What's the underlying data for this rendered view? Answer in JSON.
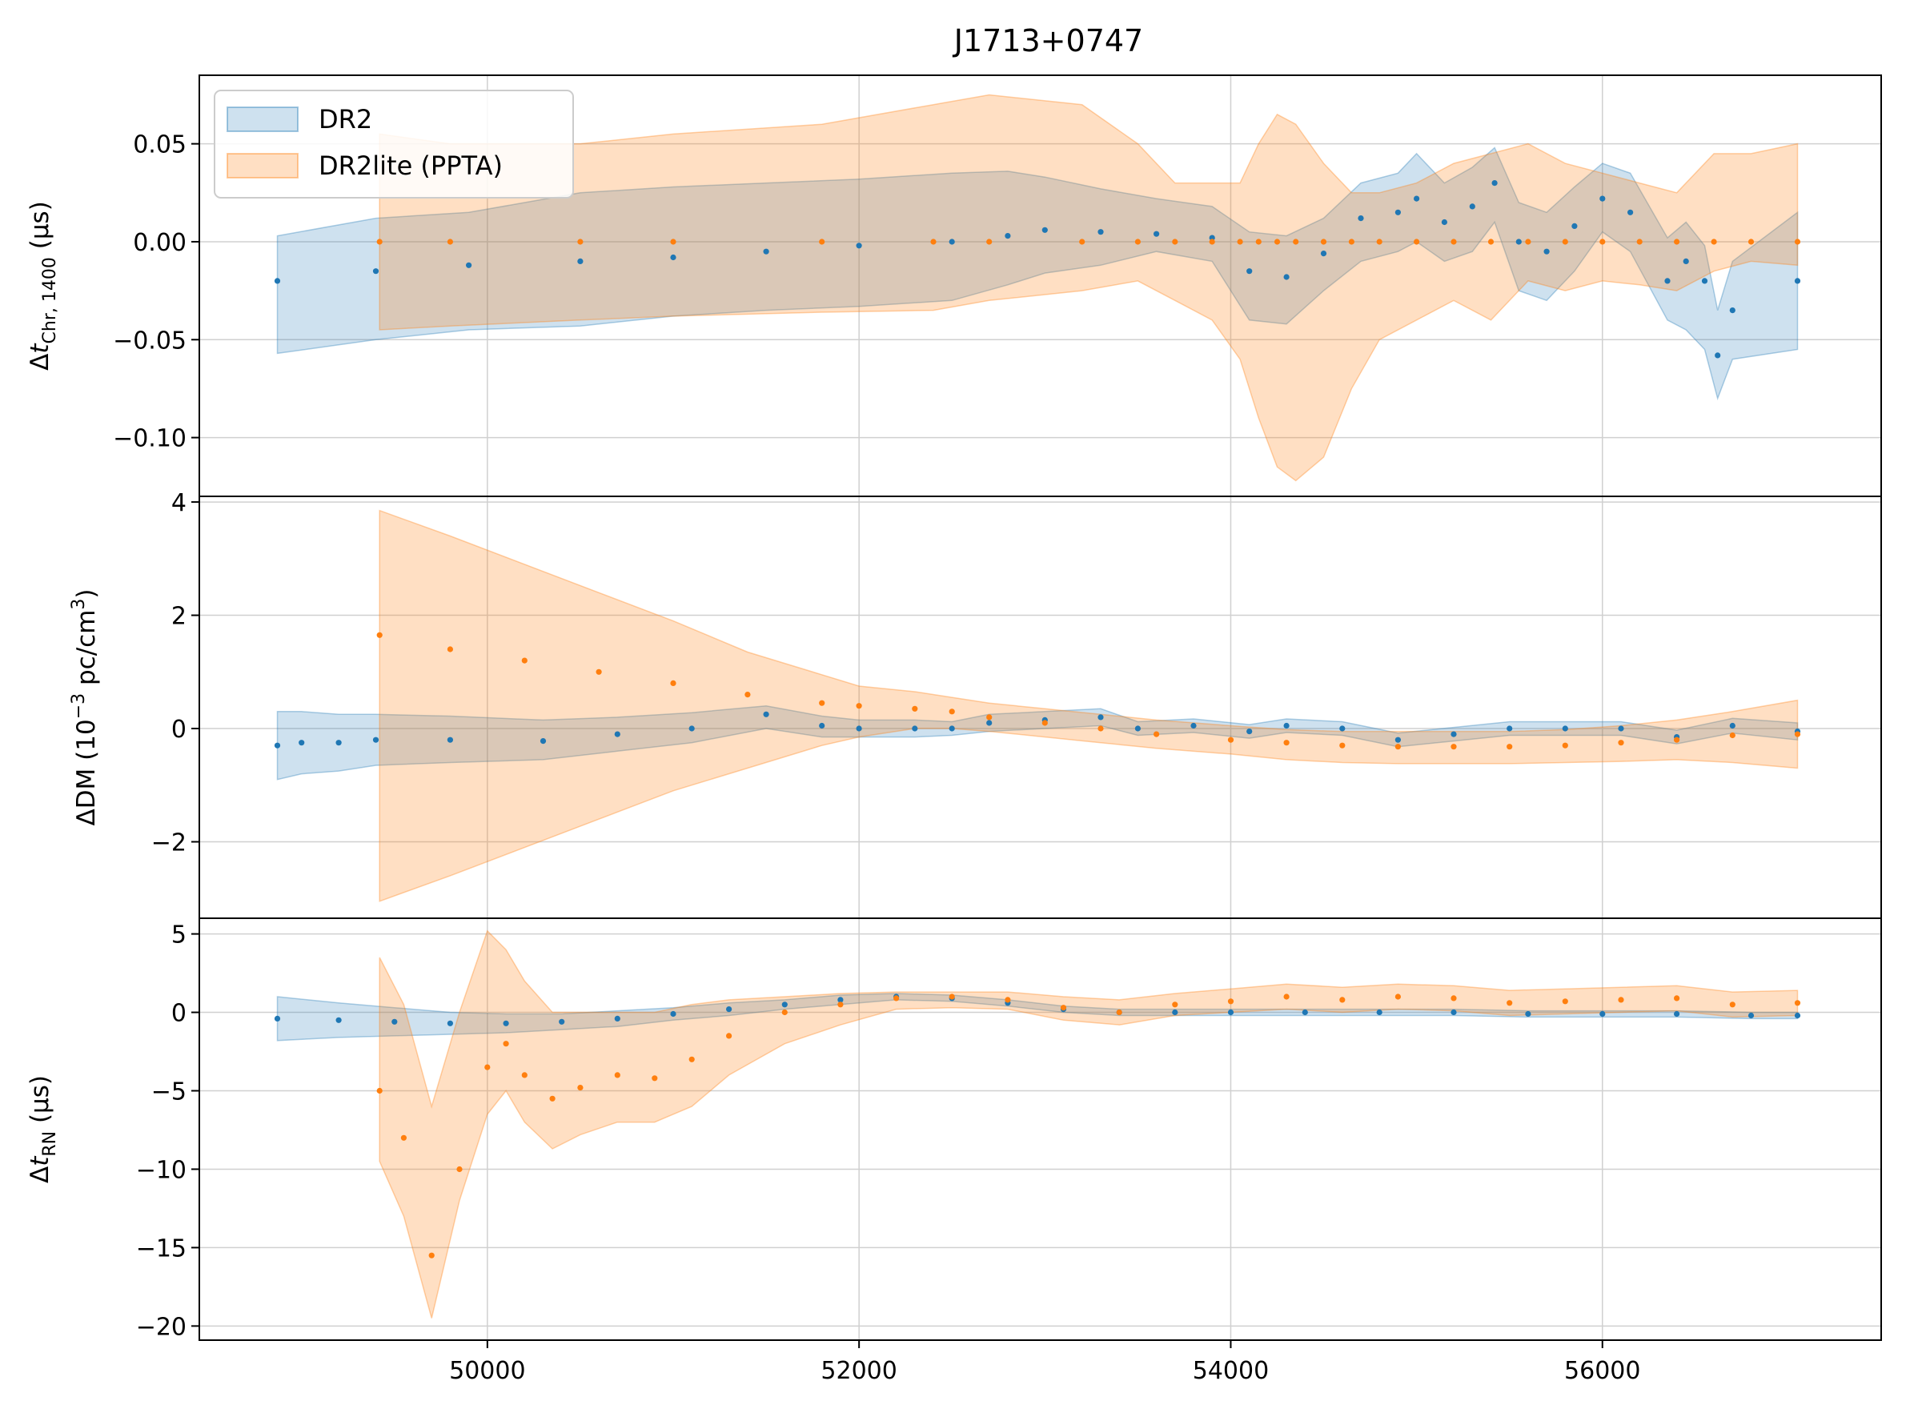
{
  "figure_title": "J1713+0747",
  "legend": {
    "entries": [
      {
        "label": "DR2",
        "color": "#1f77b4"
      },
      {
        "label": "DR2lite (PPTA)",
        "color": "#ff7f0e"
      }
    ]
  },
  "colors": {
    "dr2": "#1f77b4",
    "dr2lite": "#ff7f0e",
    "grid": "#d0d0d0"
  },
  "chart_data": [
    {
      "type": "scatter",
      "panel": "chromatic",
      "title": "J1713+0747",
      "ylabel": "Δt_Chr,1400 (μs)",
      "ylabel_parts": {
        "delta": "Δ",
        "var": "t",
        "sub": "Chr, 1400",
        "unit": "(μs)"
      },
      "xlim": [
        48450,
        57500
      ],
      "ylim": [
        -0.13,
        0.085
      ],
      "yticks": [
        0.05,
        0.0,
        -0.05,
        -0.1
      ],
      "ytick_labels": [
        "0.05",
        "0.00",
        "−0.05",
        "−0.10"
      ],
      "grid": true,
      "legend_position": "upper-left",
      "series": [
        {
          "name": "DR2",
          "x": [
            48870,
            49400,
            49900,
            50500,
            51000,
            51500,
            52000,
            52500,
            52800,
            53000,
            53300,
            53600,
            53900,
            54100,
            54300,
            54500,
            54700,
            54900,
            55000,
            55150,
            55300,
            55420,
            55550,
            55700,
            55850,
            56000,
            56150,
            56350,
            56450,
            56550,
            56620,
            56700,
            57050
          ],
          "y": [
            -0.02,
            -0.015,
            -0.012,
            -0.01,
            -0.008,
            -0.005,
            -0.002,
            0.0,
            0.003,
            0.006,
            0.005,
            0.004,
            0.002,
            -0.015,
            -0.018,
            -0.006,
            0.012,
            0.015,
            0.022,
            0.01,
            0.018,
            0.03,
            0.0,
            -0.005,
            0.008,
            0.022,
            0.015,
            -0.02,
            -0.01,
            -0.02,
            -0.058,
            -0.035,
            -0.02
          ],
          "lower": [
            -0.057,
            -0.05,
            -0.045,
            -0.043,
            -0.038,
            -0.035,
            -0.033,
            -0.03,
            -0.022,
            -0.016,
            -0.012,
            -0.005,
            -0.01,
            -0.04,
            -0.042,
            -0.025,
            -0.01,
            -0.005,
            0.0,
            -0.01,
            -0.005,
            0.01,
            -0.025,
            -0.03,
            -0.015,
            0.005,
            -0.005,
            -0.04,
            -0.045,
            -0.055,
            -0.08,
            -0.06,
            -0.055
          ],
          "upper": [
            0.003,
            0.012,
            0.015,
            0.025,
            0.028,
            0.03,
            0.032,
            0.035,
            0.036,
            0.033,
            0.027,
            0.022,
            0.018,
            0.005,
            0.003,
            0.012,
            0.03,
            0.035,
            0.045,
            0.03,
            0.038,
            0.048,
            0.02,
            0.015,
            0.028,
            0.04,
            0.035,
            0.002,
            0.01,
            -0.002,
            -0.035,
            -0.01,
            0.015
          ]
        },
        {
          "name": "DR2lite (PPTA)",
          "x": [
            49420,
            49800,
            50500,
            51000,
            51800,
            52400,
            52700,
            53200,
            53500,
            53700,
            53900,
            54050,
            54150,
            54250,
            54350,
            54500,
            54650,
            54800,
            55000,
            55200,
            55400,
            55600,
            55800,
            56000,
            56200,
            56400,
            56600,
            56800,
            57050
          ],
          "y": [
            0.0,
            0.0,
            0.0,
            0.0,
            0.0,
            0.0,
            0.0,
            0.0,
            0.0,
            0.0,
            0.0,
            0.0,
            0.0,
            0.0,
            0.0,
            0.0,
            0.0,
            0.0,
            0.0,
            0.0,
            0.0,
            0.0,
            0.0,
            0.0,
            0.0,
            0.0,
            0.0,
            0.0,
            0.0
          ],
          "lower": [
            -0.045,
            -0.043,
            -0.04,
            -0.038,
            -0.036,
            -0.035,
            -0.03,
            -0.025,
            -0.02,
            -0.03,
            -0.04,
            -0.06,
            -0.09,
            -0.115,
            -0.122,
            -0.11,
            -0.075,
            -0.05,
            -0.04,
            -0.03,
            -0.04,
            -0.02,
            -0.025,
            -0.02,
            -0.022,
            -0.025,
            -0.015,
            -0.01,
            -0.012
          ],
          "upper": [
            0.055,
            0.05,
            0.05,
            0.055,
            0.06,
            0.07,
            0.075,
            0.07,
            0.05,
            0.03,
            0.03,
            0.03,
            0.05,
            0.065,
            0.06,
            0.04,
            0.025,
            0.025,
            0.03,
            0.04,
            0.045,
            0.05,
            0.04,
            0.035,
            0.03,
            0.025,
            0.045,
            0.045,
            0.05
          ]
        }
      ]
    },
    {
      "type": "scatter",
      "panel": "dm",
      "ylabel": "ΔDM (10^−3 pc/cm^3)",
      "ylabel_parts": {
        "pre": "ΔDM (10",
        "exp": "−3",
        "mid": " pc/cm",
        "exp2": "3",
        "post": ")"
      },
      "xlim": [
        48450,
        57500
      ],
      "ylim": [
        -3.35,
        4.1
      ],
      "yticks": [
        4,
        2,
        0,
        -2
      ],
      "ytick_labels": [
        "4",
        "2",
        "0",
        "−2"
      ],
      "grid": true,
      "series": [
        {
          "name": "DR2",
          "x": [
            48870,
            49000,
            49200,
            49400,
            49800,
            50300,
            50700,
            51100,
            51500,
            51800,
            52000,
            52300,
            52500,
            52700,
            53000,
            53300,
            53500,
            53800,
            54100,
            54300,
            54600,
            54900,
            55200,
            55500,
            55800,
            56100,
            56400,
            56700,
            57050
          ],
          "y": [
            -0.3,
            -0.25,
            -0.25,
            -0.2,
            -0.2,
            -0.22,
            -0.1,
            0.0,
            0.25,
            0.05,
            0.0,
            0.0,
            0.0,
            0.1,
            0.15,
            0.2,
            0.0,
            0.05,
            -0.05,
            0.05,
            0.0,
            -0.2,
            -0.1,
            0.0,
            0.0,
            0.0,
            -0.15,
            0.05,
            -0.05
          ],
          "lower": [
            -0.9,
            -0.8,
            -0.75,
            -0.65,
            -0.6,
            -0.55,
            -0.4,
            -0.25,
            0.0,
            -0.15,
            -0.15,
            -0.15,
            -0.12,
            -0.05,
            0.0,
            0.05,
            -0.12,
            -0.07,
            -0.17,
            -0.07,
            -0.12,
            -0.32,
            -0.22,
            -0.12,
            -0.12,
            -0.12,
            -0.27,
            -0.08,
            -0.2
          ],
          "upper": [
            0.3,
            0.3,
            0.25,
            0.25,
            0.22,
            0.15,
            0.2,
            0.28,
            0.4,
            0.22,
            0.15,
            0.15,
            0.12,
            0.25,
            0.3,
            0.35,
            0.12,
            0.17,
            0.07,
            0.17,
            0.12,
            -0.08,
            0.02,
            0.12,
            0.12,
            0.12,
            -0.03,
            0.18,
            0.1
          ]
        },
        {
          "name": "DR2lite (PPTA)",
          "x": [
            49420,
            49800,
            50200,
            50600,
            51000,
            51400,
            51800,
            52000,
            52300,
            52500,
            52700,
            53000,
            53300,
            53600,
            54000,
            54300,
            54600,
            54900,
            55200,
            55500,
            55800,
            56100,
            56400,
            56700,
            57050
          ],
          "y": [
            1.65,
            1.4,
            1.2,
            1.0,
            0.8,
            0.6,
            0.45,
            0.4,
            0.35,
            0.3,
            0.2,
            0.1,
            0.0,
            -0.1,
            -0.2,
            -0.25,
            -0.3,
            -0.32,
            -0.32,
            -0.32,
            -0.3,
            -0.25,
            -0.2,
            -0.12,
            -0.1
          ],
          "lower": [
            -3.05,
            -2.6,
            -2.1,
            -1.6,
            -1.1,
            -0.7,
            -0.3,
            -0.15,
            0.0,
            0.0,
            -0.05,
            -0.15,
            -0.25,
            -0.35,
            -0.45,
            -0.55,
            -0.6,
            -0.62,
            -0.62,
            -0.62,
            -0.6,
            -0.58,
            -0.55,
            -0.6,
            -0.7
          ],
          "upper": [
            3.85,
            3.4,
            2.9,
            2.4,
            1.9,
            1.35,
            0.95,
            0.75,
            0.65,
            0.55,
            0.45,
            0.35,
            0.25,
            0.15,
            0.05,
            -0.02,
            -0.05,
            -0.05,
            -0.05,
            -0.05,
            -0.02,
            0.05,
            0.15,
            0.3,
            0.5
          ]
        }
      ]
    },
    {
      "type": "scatter",
      "panel": "rednoise",
      "ylabel": "Δt_RN (μs)",
      "ylabel_parts": {
        "delta": "Δ",
        "var": "t",
        "sub": "RN",
        "unit": "(μs)"
      },
      "xlim": [
        48450,
        57500
      ],
      "ylim": [
        -20.9,
        6.0
      ],
      "yticks": [
        5,
        0,
        -5,
        -10,
        -15,
        -20
      ],
      "ytick_labels": [
        "5",
        "0",
        "−5",
        "−10",
        "−15",
        "−20"
      ],
      "xticks": [
        50000,
        52000,
        54000,
        56000
      ],
      "xtick_labels": [
        "50000",
        "52000",
        "54000",
        "56000"
      ],
      "grid": true,
      "series": [
        {
          "name": "DR2",
          "x": [
            48870,
            49200,
            49500,
            49800,
            50100,
            50400,
            50700,
            51000,
            51300,
            51600,
            51900,
            52200,
            52500,
            52800,
            53100,
            53400,
            53700,
            54000,
            54400,
            54800,
            55200,
            55600,
            56000,
            56400,
            56800,
            57050
          ],
          "y": [
            -0.4,
            -0.5,
            -0.6,
            -0.7,
            -0.7,
            -0.6,
            -0.4,
            -0.1,
            0.2,
            0.5,
            0.8,
            1.0,
            0.9,
            0.6,
            0.2,
            0.0,
            0.0,
            0.0,
            0.0,
            0.0,
            0.0,
            -0.1,
            -0.1,
            -0.1,
            -0.2,
            -0.2
          ],
          "lower": [
            -1.8,
            -1.6,
            -1.5,
            -1.4,
            -1.3,
            -1.1,
            -0.9,
            -0.5,
            -0.2,
            0.2,
            0.5,
            0.8,
            0.7,
            0.4,
            0.0,
            -0.2,
            -0.2,
            -0.2,
            -0.2,
            -0.2,
            -0.2,
            -0.3,
            -0.3,
            -0.3,
            -0.4,
            -0.4
          ],
          "upper": [
            1.0,
            0.6,
            0.3,
            0.0,
            -0.1,
            -0.1,
            0.1,
            0.3,
            0.6,
            0.8,
            1.1,
            1.2,
            1.1,
            0.8,
            0.4,
            0.2,
            0.2,
            0.2,
            0.2,
            0.2,
            0.2,
            0.1,
            0.1,
            0.1,
            0.0,
            0.0
          ]
        },
        {
          "name": "DR2lite (PPTA)",
          "x": [
            49420,
            49550,
            49700,
            49850,
            50000,
            50100,
            50200,
            50350,
            50500,
            50700,
            50900,
            51100,
            51300,
            51600,
            51900,
            52200,
            52500,
            52800,
            53100,
            53400,
            53700,
            54000,
            54300,
            54600,
            54900,
            55200,
            55500,
            55800,
            56100,
            56400,
            56700,
            57050
          ],
          "y": [
            -5.0,
            -8.0,
            -15.5,
            -10.0,
            -3.5,
            -2.0,
            -4.0,
            -5.5,
            -4.8,
            -4.0,
            -4.2,
            -3.0,
            -1.5,
            0.0,
            0.5,
            0.9,
            1.0,
            0.8,
            0.3,
            0.0,
            0.5,
            0.7,
            1.0,
            0.8,
            1.0,
            0.9,
            0.6,
            0.7,
            0.8,
            0.9,
            0.5,
            0.6
          ],
          "lower": [
            -9.5,
            -13.0,
            -19.5,
            -12.0,
            -6.5,
            -5.0,
            -7.0,
            -8.7,
            -7.8,
            -7.0,
            -7.0,
            -6.0,
            -4.0,
            -2.0,
            -0.8,
            0.2,
            0.3,
            0.2,
            -0.5,
            -0.8,
            -0.2,
            0.0,
            0.2,
            0.0,
            0.2,
            0.1,
            -0.2,
            -0.1,
            0.0,
            0.1,
            -0.3,
            -0.2
          ],
          "upper": [
            3.5,
            0.5,
            -6.0,
            0.0,
            5.2,
            4.0,
            2.0,
            0.0,
            0.0,
            0.0,
            0.0,
            0.5,
            0.8,
            1.0,
            1.2,
            1.3,
            1.3,
            1.3,
            1.0,
            0.8,
            1.2,
            1.5,
            1.8,
            1.6,
            1.8,
            1.7,
            1.4,
            1.5,
            1.6,
            1.7,
            1.3,
            1.4
          ]
        }
      ]
    }
  ]
}
